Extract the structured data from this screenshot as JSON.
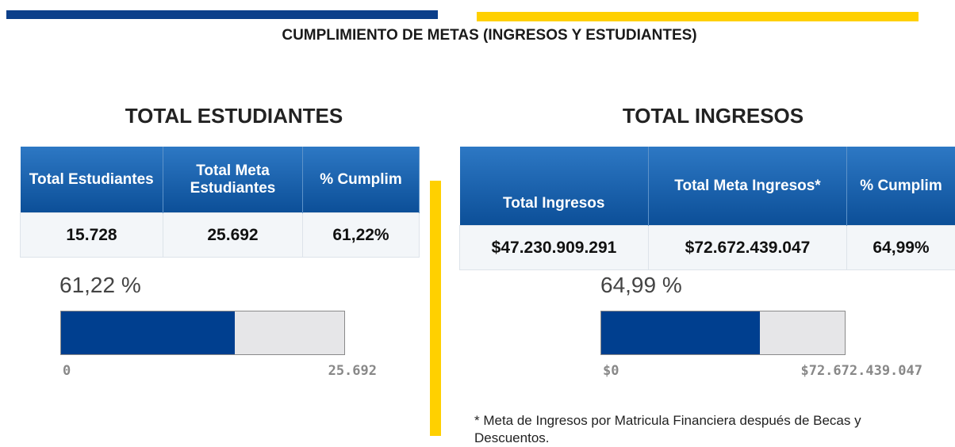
{
  "title": "CUMPLIMIENTO DE METAS (INGRESOS Y ESTUDIANTES)",
  "panels": [
    {
      "heading": "TOTAL ESTUDIANTES",
      "table": {
        "headers": [
          "Total Estudiantes",
          "Total Meta Estudiantes",
          "% Cumplim"
        ],
        "rows": [
          [
            "15.728",
            "25.692",
            "61,22%"
          ]
        ]
      },
      "gauge": {
        "label": "61,22 %",
        "value": 15728,
        "min": 0,
        "max": {
          "value": 25692,
          "label": "25.692"
        },
        "color": "#003f8f"
      }
    },
    {
      "heading": "TOTAL INGRESOS",
      "table": {
        "headers": [
          "Total Ingresos",
          "Total Meta Ingresos*",
          "% Cumplim"
        ],
        "rows": [
          [
            "$47.230.909.291",
            "$72.672.439.047",
            "64,99%"
          ]
        ]
      },
      "gauge": {
        "label": "64,99 %",
        "value": 47230909291,
        "min": {
          "value": 0,
          "label": "$0"
        },
        "max": {
          "value": 72672439047,
          "label": "$72.672.439.047"
        },
        "color": "#003f8f"
      },
      "footnote": "* Meta de Ingresos por Matricula Financiera después de Becas y Descuentos."
    }
  ]
}
